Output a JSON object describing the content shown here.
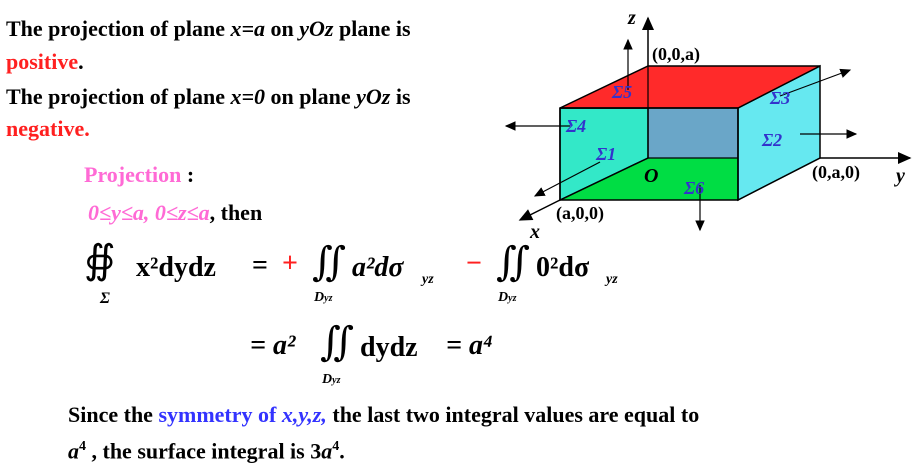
{
  "text": {
    "line1_a": "The projection of plane ",
    "line1_var": "x=a",
    "line1_b": " on ",
    "line1_plane": "yOz",
    "line1_c": " plane is",
    "line2": "positive",
    "line2_dot": ".",
    "line3_a": "The projection of plane ",
    "line3_var": "x=0",
    "line3_b": " on plane ",
    "line3_plane": "yOz",
    "line3_c": " is",
    "line4": "negative.",
    "projection_label": "Projection",
    "projection_colon": " :",
    "range": "0≤y≤a, 0≤z≤a",
    "range_then": ", then",
    "conclusion_a": "Since the ",
    "conclusion_sym": "symmetry of ",
    "conclusion_vars": "x,y,z,",
    "conclusion_b": " the last two integral values are equal to",
    "conclusion_c_pre": "a",
    "conclusion_c_sup": "4",
    "conclusion_c_mid": "  , the surface integral is 3",
    "conclusion_c_a": "a",
    "conclusion_c_sup2": "4",
    "conclusion_c_end": "."
  },
  "formula": {
    "lhs_integrand": "x²dydz",
    "lhs_sub": "Σ",
    "eq": "=",
    "plus": "+",
    "term1": "a²dσ",
    "term1_sub": "yz",
    "dom_sub": "D",
    "dom_sub_idx": "yz",
    "minus": "−",
    "term2": "0²dσ",
    "term2_sub": "yz",
    "line2_eq": "= a²",
    "line2_integrand": "dydz",
    "line2_result": "= a⁴"
  },
  "figure": {
    "labels": {
      "z_axis": "z",
      "y_axis": "y",
      "x_axis": "x",
      "origin": "O",
      "pt_z": "(0,0,a)",
      "pt_y": "(0,a,0)",
      "pt_x": "(a,0,0)",
      "s1": "Σ1",
      "s2": "Σ2",
      "s3": "Σ3",
      "s4": "Σ4",
      "s5": "Σ5",
      "s6": "Σ6"
    },
    "colors": {
      "top": "#ff2a2a",
      "front": "#33e8c8",
      "right": "#66e8f0",
      "bottom": "#00dd44",
      "back": "#6aa6c8"
    }
  }
}
